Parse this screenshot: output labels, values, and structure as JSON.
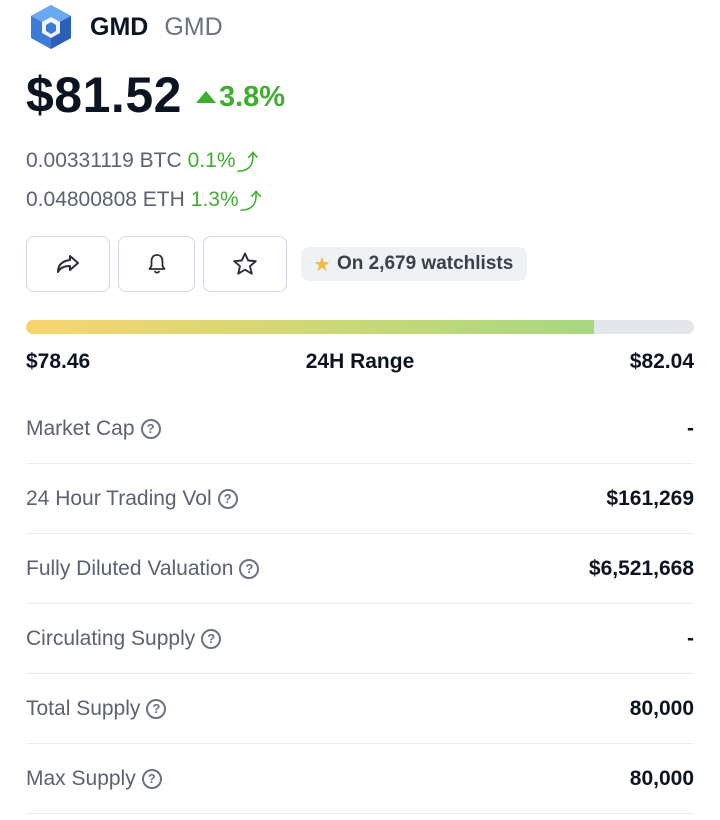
{
  "coin": {
    "name": "GMD",
    "symbol": "GMD",
    "price": "$81.52",
    "change_24h": "3.8%"
  },
  "conversions": [
    {
      "value": "0.00331119 BTC",
      "change": "0.1%"
    },
    {
      "value": "0.04800808 ETH",
      "change": "1.3%"
    }
  ],
  "watchlist": {
    "label": "On 2,679 watchlists"
  },
  "range_24h": {
    "low": "$78.46",
    "title": "24H Range",
    "high": "$82.04",
    "position_fraction": 0.85
  },
  "stats": [
    {
      "label": "Market Cap",
      "value": "-"
    },
    {
      "label": "24 Hour Trading Vol",
      "value": "$161,269"
    },
    {
      "label": "Fully Diluted Valuation",
      "value": "$6,521,668"
    },
    {
      "label": "Circulating Supply",
      "value": "-"
    },
    {
      "label": "Total Supply",
      "value": "80,000"
    },
    {
      "label": "Max Supply",
      "value": "80,000"
    }
  ],
  "icons": {
    "logo": "gmd-logo-cube",
    "share": "share-icon",
    "bell": "bell-icon",
    "star": "star-icon",
    "help": "question-circle-icon"
  },
  "colors": {
    "positive": "#3fae2f",
    "range_start": "#f8d470",
    "range_end": "#a6d781",
    "logo_primary": "#3d7bd9"
  }
}
